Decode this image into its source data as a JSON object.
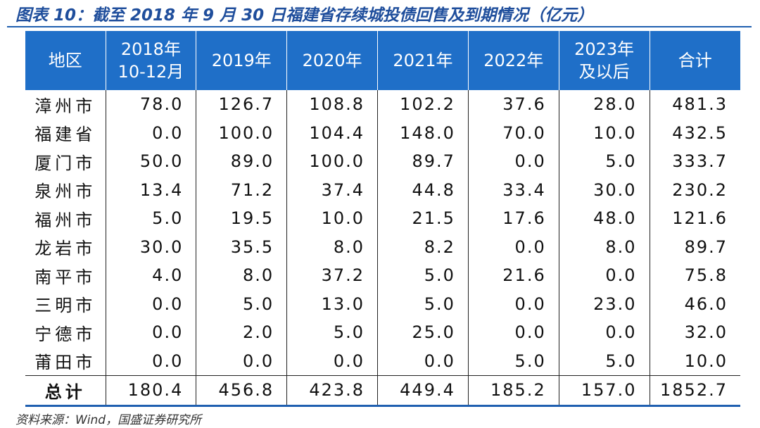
{
  "title": "图表 10：截至 2018 年 9 月 30 日福建省存续城投债回售及到期情况（亿元）",
  "table": {
    "header": [
      [
        "地区"
      ],
      [
        "2018年",
        "10-12月"
      ],
      [
        "2019年"
      ],
      [
        "2020年"
      ],
      [
        "2021年"
      ],
      [
        "2022年"
      ],
      [
        "2023年",
        "及以后"
      ],
      [
        "合计"
      ]
    ],
    "rows": [
      [
        "漳州市",
        "78.0",
        "126.7",
        "108.8",
        "102.2",
        "37.6",
        "28.0",
        "481.3"
      ],
      [
        "福建省",
        "0.0",
        "100.0",
        "104.4",
        "148.0",
        "70.0",
        "10.0",
        "432.5"
      ],
      [
        "厦门市",
        "50.0",
        "89.0",
        "100.0",
        "89.7",
        "0.0",
        "5.0",
        "333.7"
      ],
      [
        "泉州市",
        "13.4",
        "71.2",
        "37.4",
        "44.8",
        "33.4",
        "30.0",
        "230.2"
      ],
      [
        "福州市",
        "5.0",
        "19.5",
        "10.0",
        "21.5",
        "17.6",
        "48.0",
        "121.6"
      ],
      [
        "龙岩市",
        "30.0",
        "35.5",
        "8.0",
        "8.2",
        "0.0",
        "8.0",
        "89.7"
      ],
      [
        "南平市",
        "4.0",
        "8.0",
        "37.2",
        "5.0",
        "21.6",
        "0.0",
        "75.8"
      ],
      [
        "三明市",
        "0.0",
        "5.0",
        "13.0",
        "5.0",
        "0.0",
        "23.0",
        "46.0"
      ],
      [
        "宁德市",
        "0.0",
        "2.0",
        "5.0",
        "25.0",
        "0.0",
        "0.0",
        "32.0"
      ],
      [
        "莆田市",
        "0.0",
        "0.0",
        "0.0",
        "0.0",
        "5.0",
        "5.0",
        "10.0"
      ],
      [
        "总计",
        "180.4",
        "456.8",
        "423.8",
        "449.4",
        "185.2",
        "157.0",
        "1852.7"
      ]
    ]
  },
  "source": "资料来源：Wind，国盛证券研究所"
}
